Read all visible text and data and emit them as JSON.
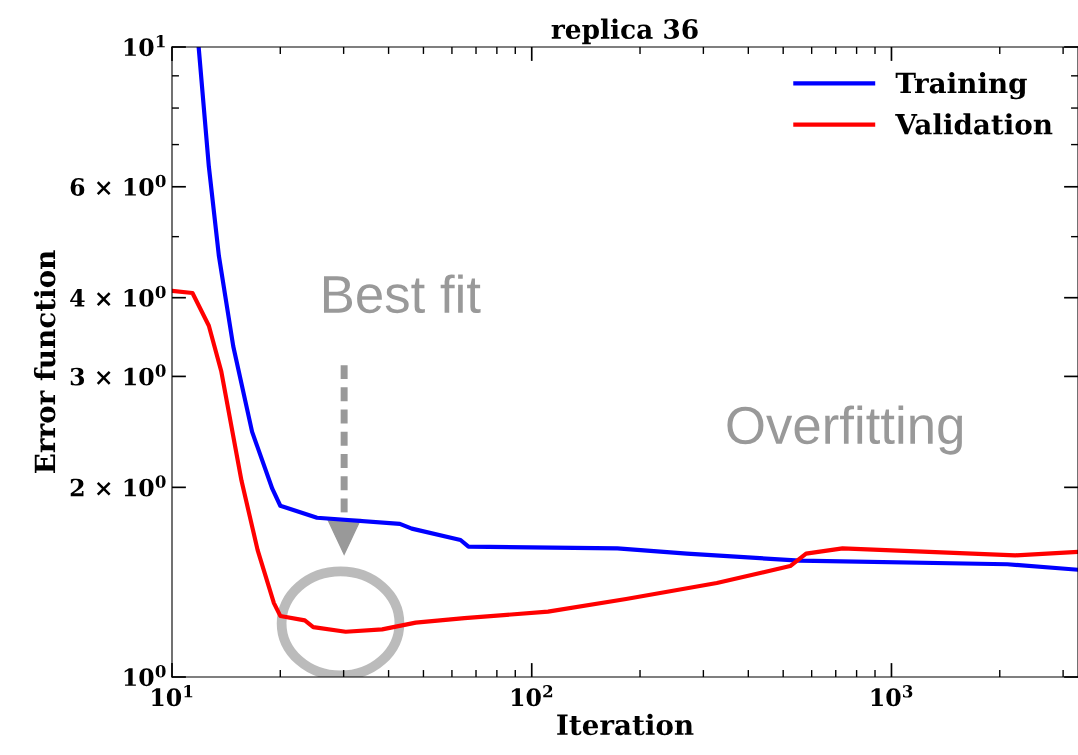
{
  "chart_data": {
    "type": "line",
    "title": "replica 36",
    "xlabel": "Iteration",
    "ylabel": "Error function",
    "log": "xy",
    "xlim": [
      10,
      3300
    ],
    "ylim": [
      1,
      10
    ],
    "xticks": [
      {
        "value": 10,
        "label": "10$^{1}$"
      },
      {
        "value": 20,
        "label": null
      },
      {
        "value": 30,
        "label": null
      },
      {
        "value": 40,
        "label": null
      },
      {
        "value": 50,
        "label": null
      },
      {
        "value": 60,
        "label": null
      },
      {
        "value": 70,
        "label": null
      },
      {
        "value": 80,
        "label": null
      },
      {
        "value": 90,
        "label": null
      },
      {
        "value": 100,
        "label": "10$^{2}$"
      },
      {
        "value": 200,
        "label": null
      },
      {
        "value": 300,
        "label": null
      },
      {
        "value": 400,
        "label": null
      },
      {
        "value": 500,
        "label": null
      },
      {
        "value": 600,
        "label": null
      },
      {
        "value": 700,
        "label": null
      },
      {
        "value": 800,
        "label": null
      },
      {
        "value": 900,
        "label": null
      },
      {
        "value": 1000,
        "label": "10$^{3}$"
      },
      {
        "value": 2000,
        "label": null
      },
      {
        "value": 3000,
        "label": null
      }
    ],
    "yticks": [
      {
        "value": 1,
        "label": "10$^{0}$"
      },
      {
        "value": 2,
        "label": "2 × 10$^{0}$"
      },
      {
        "value": 3,
        "label": "3 × 10$^{0}$"
      },
      {
        "value": 4,
        "label": "4 × 10$^{0}$"
      },
      {
        "value": 5,
        "label": null
      },
      {
        "value": 6,
        "label": "6 × 10$^{0}$"
      },
      {
        "value": 7,
        "label": null
      },
      {
        "value": 8,
        "label": null
      },
      {
        "value": 9,
        "label": null
      },
      {
        "value": 10,
        "label": "10$^{1}$"
      }
    ],
    "legend": "top right",
    "grid": false,
    "marker": "none",
    "line_style": "solid",
    "series": [
      {
        "name": "Training",
        "color": "#0000ff",
        "x": [
          11.86,
          12.66,
          13.5,
          14.8,
          16.7,
          19.0,
          20.0,
          25.3,
          43,
          46.4,
          63.4,
          66.7,
          173,
          270,
          555,
          2100,
          3300
        ],
        "values": [
          10,
          6.46,
          4.66,
          3.35,
          2.45,
          1.99,
          1.87,
          1.79,
          1.75,
          1.72,
          1.65,
          1.61,
          1.6,
          1.57,
          1.53,
          1.51,
          1.48
        ]
      },
      {
        "name": "Validation",
        "color": "#ff0000",
        "x": [
          10,
          11.4,
          12.66,
          13.7,
          15.6,
          17.3,
          19.2,
          20.0,
          23.4,
          24.7,
          30.4,
          38.4,
          47.6,
          65,
          111,
          183,
          327,
          523,
          579,
          731,
          2210,
          3300
        ],
        "values": [
          4.1,
          4.07,
          3.61,
          3.06,
          2.05,
          1.59,
          1.31,
          1.25,
          1.23,
          1.2,
          1.18,
          1.19,
          1.22,
          1.24,
          1.27,
          1.33,
          1.41,
          1.5,
          1.57,
          1.6,
          1.56,
          1.58
        ]
      }
    ],
    "annotations": [
      "Best fit",
      "Overfitting"
    ]
  }
}
